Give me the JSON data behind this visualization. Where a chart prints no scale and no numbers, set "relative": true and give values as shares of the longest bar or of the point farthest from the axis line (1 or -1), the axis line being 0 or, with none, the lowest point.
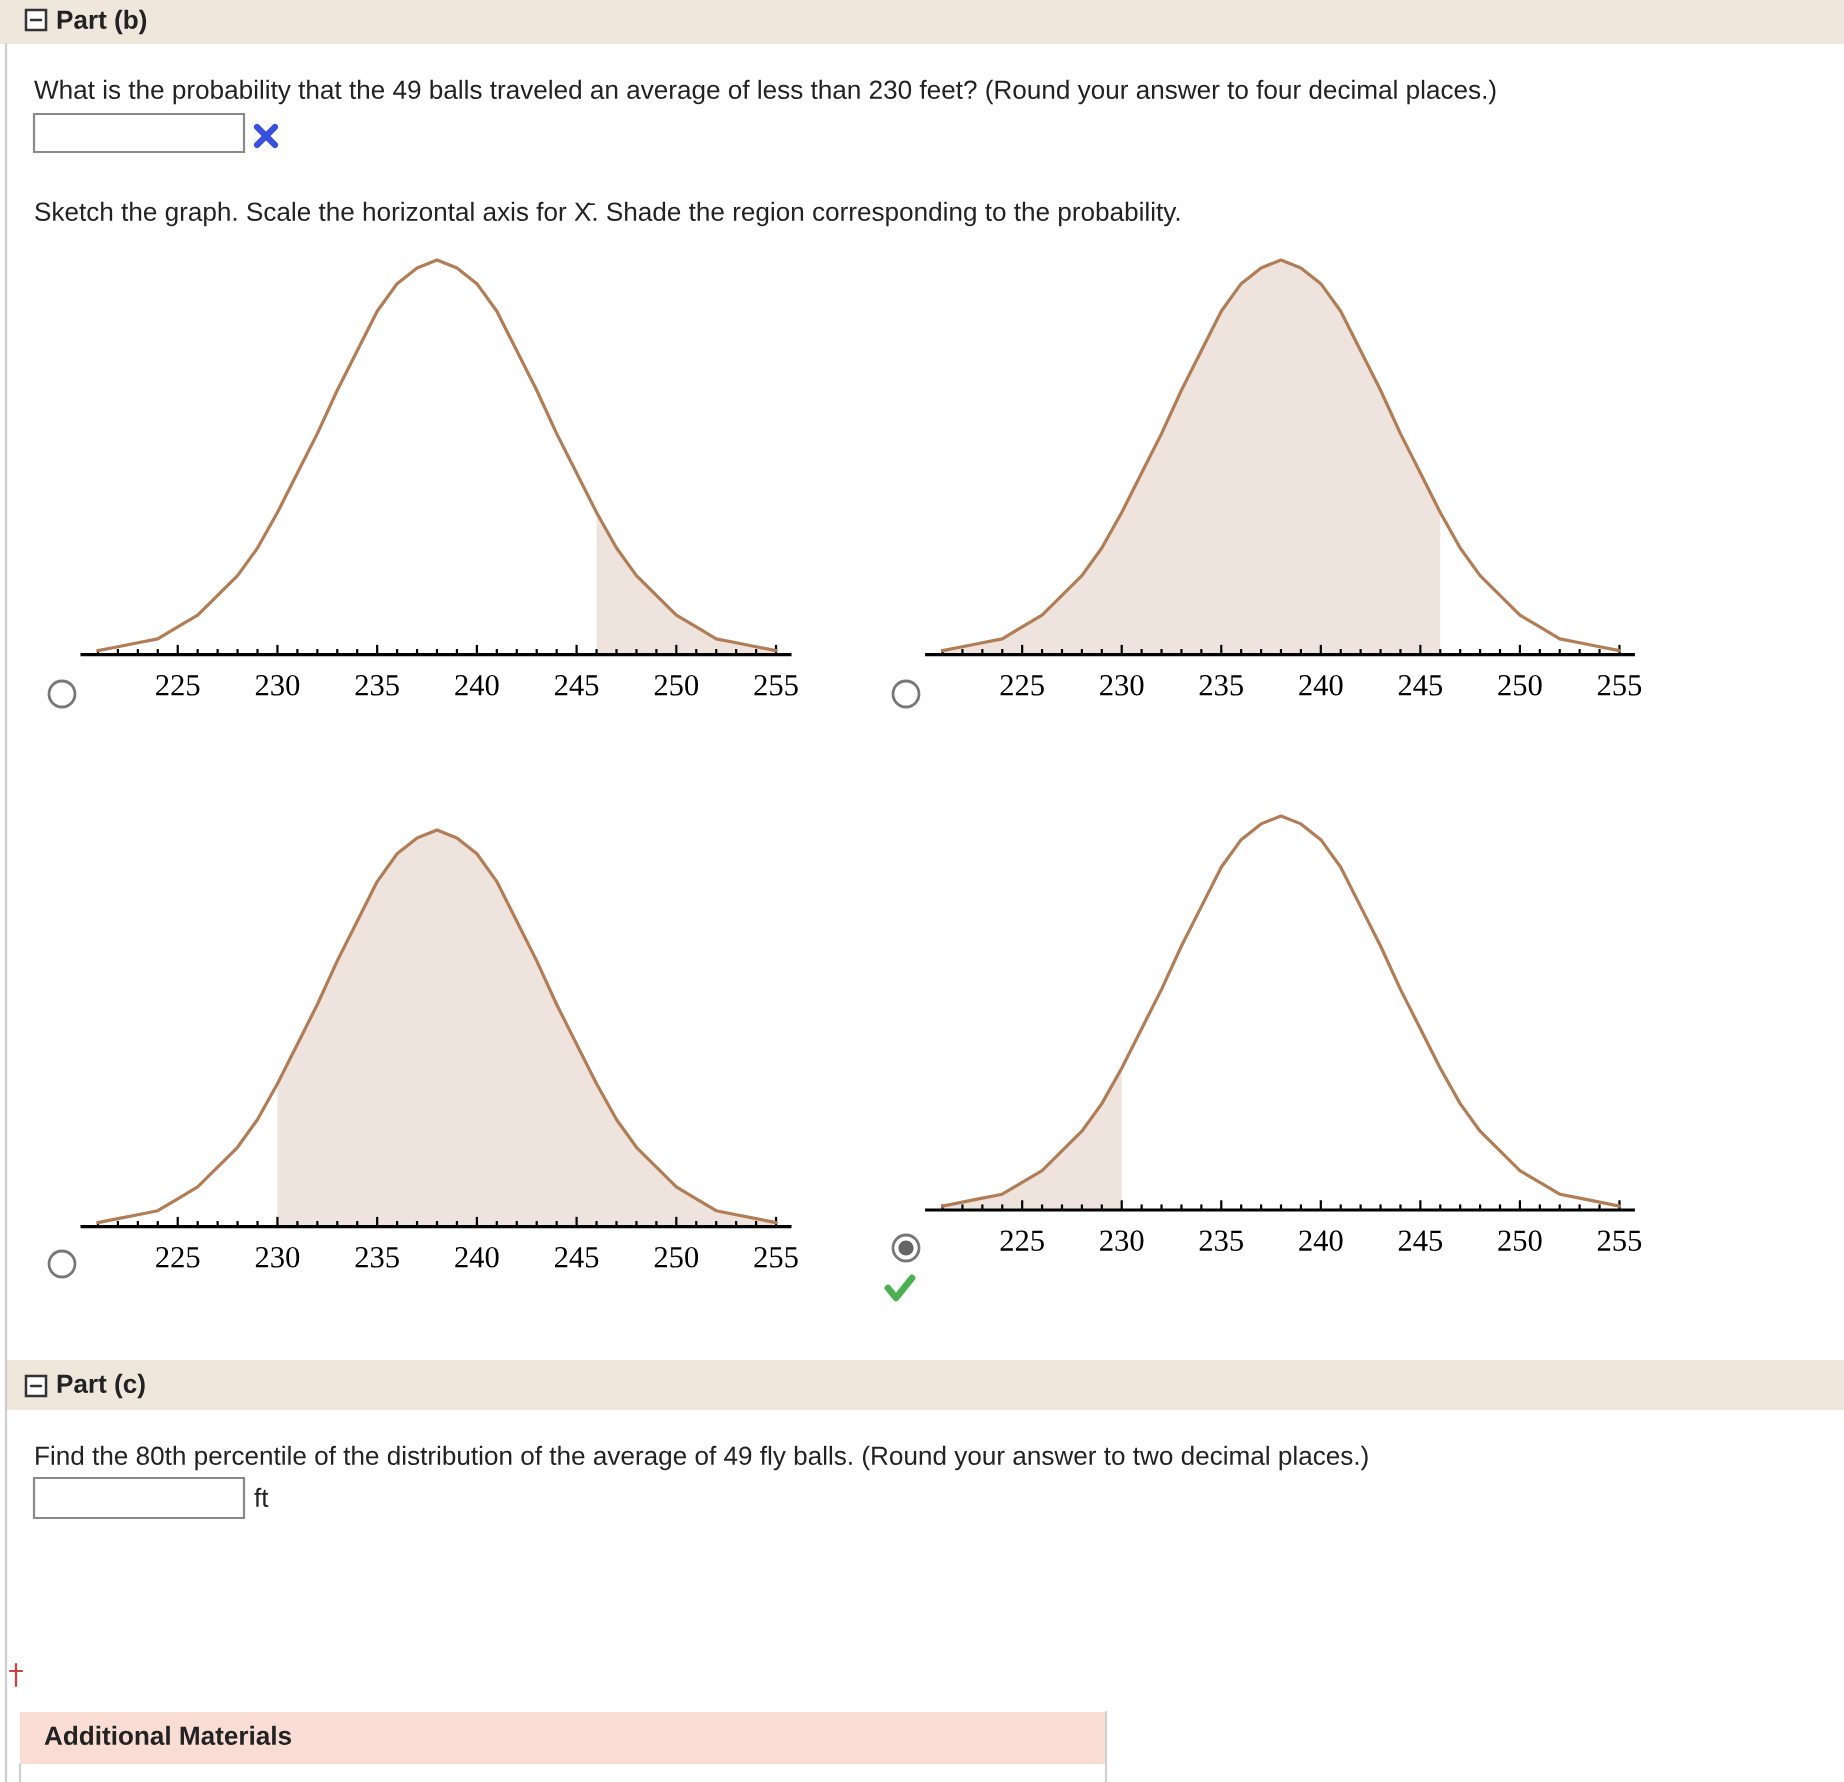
{
  "chart_data": [
    {
      "type": "line",
      "relative": true,
      "annotations": [
        "Part (b)",
        "What is the probability that the 49 balls traveled an average of less than 230 feet? (Round your answer to four decimal places.)",
        "Sketch the graph. Scale the horizontal axis for X̄. Shade the region corresponding to the probability."
      ],
      "x": [
        221,
        222,
        223,
        224,
        225,
        226,
        227,
        228,
        229,
        230,
        231,
        232,
        233,
        234,
        235,
        236,
        237,
        238,
        239,
        240,
        241,
        242,
        243,
        244,
        245,
        246,
        247,
        248,
        249,
        250,
        251,
        252,
        253,
        254,
        255
      ],
      "xlim": [
        220.2,
        255.7
      ],
      "xticks": [
        {
          "value": 221,
          "label": null
        },
        {
          "value": 222,
          "label": null
        },
        {
          "value": 223,
          "label": null
        },
        {
          "value": 224,
          "label": null
        },
        225,
        {
          "value": 226,
          "label": null
        },
        {
          "value": 227,
          "label": null
        },
        {
          "value": 228,
          "label": null
        },
        {
          "value": 229,
          "label": null
        },
        230,
        {
          "value": 231,
          "label": null
        },
        {
          "value": 232,
          "label": null
        },
        {
          "value": 233,
          "label": null
        },
        {
          "value": 234,
          "label": null
        },
        235,
        {
          "value": 236,
          "label": null
        },
        {
          "value": 237,
          "label": null
        },
        {
          "value": 238,
          "label": null
        },
        {
          "value": 239,
          "label": null
        },
        240,
        {
          "value": 241,
          "label": null
        },
        {
          "value": 242,
          "label": null
        },
        {
          "value": 243,
          "label": null
        },
        {
          "value": 244,
          "label": null
        },
        245,
        {
          "value": 246,
          "label": null
        },
        {
          "value": 247,
          "label": null
        },
        {
          "value": 248,
          "label": null
        },
        {
          "value": 249,
          "label": null
        },
        250,
        {
          "value": 251,
          "label": null
        },
        {
          "value": 252,
          "label": null
        },
        {
          "value": 253,
          "label": null
        },
        {
          "value": 254,
          "label": null
        },
        255
      ],
      "series": [
        {
          "type": "area",
          "color": "#efe4dd",
          "x": [
            246,
            247,
            248,
            249,
            250,
            251,
            252,
            253,
            254,
            255
          ],
          "values": [
            0.36,
            0.27,
            0.2,
            0.15,
            0.1,
            0.07,
            0.04,
            0.03,
            0.02,
            0.01
          ]
        },
        {
          "color": "#b17d57",
          "values": [
            0.01,
            0.02,
            0.03,
            0.04,
            0.07,
            0.1,
            0.15,
            0.2,
            0.27,
            0.36,
            0.46,
            0.56,
            0.67,
            0.77,
            0.87,
            0.94,
            0.98,
            1,
            0.98,
            0.94,
            0.87,
            0.77,
            0.67,
            0.56,
            0.46,
            0.36,
            0.27,
            0.2,
            0.15,
            0.1,
            0.07,
            0.04,
            0.03,
            0.02,
            0.01
          ]
        }
      ]
    },
    {
      "type": "line",
      "relative": true,
      "x": [
        221,
        222,
        223,
        224,
        225,
        226,
        227,
        228,
        229,
        230,
        231,
        232,
        233,
        234,
        235,
        236,
        237,
        238,
        239,
        240,
        241,
        242,
        243,
        244,
        245,
        246,
        247,
        248,
        249,
        250,
        251,
        252,
        253,
        254,
        255
      ],
      "xlim": [
        220.2,
        255.7
      ],
      "xticks": [
        {
          "value": 221,
          "label": null
        },
        {
          "value": 222,
          "label": null
        },
        {
          "value": 223,
          "label": null
        },
        {
          "value": 224,
          "label": null
        },
        225,
        {
          "value": 226,
          "label": null
        },
        {
          "value": 227,
          "label": null
        },
        {
          "value": 228,
          "label": null
        },
        {
          "value": 229,
          "label": null
        },
        230,
        {
          "value": 231,
          "label": null
        },
        {
          "value": 232,
          "label": null
        },
        {
          "value": 233,
          "label": null
        },
        {
          "value": 234,
          "label": null
        },
        235,
        {
          "value": 236,
          "label": null
        },
        {
          "value": 237,
          "label": null
        },
        {
          "value": 238,
          "label": null
        },
        {
          "value": 239,
          "label": null
        },
        240,
        {
          "value": 241,
          "label": null
        },
        {
          "value": 242,
          "label": null
        },
        {
          "value": 243,
          "label": null
        },
        {
          "value": 244,
          "label": null
        },
        245,
        {
          "value": 246,
          "label": null
        },
        {
          "value": 247,
          "label": null
        },
        {
          "value": 248,
          "label": null
        },
        {
          "value": 249,
          "label": null
        },
        250,
        {
          "value": 251,
          "label": null
        },
        {
          "value": 252,
          "label": null
        },
        {
          "value": 253,
          "label": null
        },
        {
          "value": 254,
          "label": null
        },
        255
      ],
      "series": [
        {
          "type": "area",
          "color": "#efe4dd",
          "x": [
            221,
            222,
            223,
            224,
            225,
            226,
            227,
            228,
            229,
            230,
            231,
            232,
            233,
            234,
            235,
            236,
            237,
            238,
            239,
            240,
            241,
            242,
            243,
            244,
            245,
            246
          ],
          "values": [
            0.01,
            0.02,
            0.03,
            0.04,
            0.07,
            0.1,
            0.15,
            0.2,
            0.27,
            0.36,
            0.46,
            0.56,
            0.67,
            0.77,
            0.87,
            0.94,
            0.98,
            1,
            0.98,
            0.94,
            0.87,
            0.77,
            0.67,
            0.56,
            0.46,
            0.36
          ]
        },
        {
          "color": "#b17d57",
          "values": [
            0.01,
            0.02,
            0.03,
            0.04,
            0.07,
            0.1,
            0.15,
            0.2,
            0.27,
            0.36,
            0.46,
            0.56,
            0.67,
            0.77,
            0.87,
            0.94,
            0.98,
            1,
            0.98,
            0.94,
            0.87,
            0.77,
            0.67,
            0.56,
            0.46,
            0.36,
            0.27,
            0.2,
            0.15,
            0.1,
            0.07,
            0.04,
            0.03,
            0.02,
            0.01
          ]
        }
      ]
    },
    {
      "type": "line",
      "relative": true,
      "x": [
        221,
        222,
        223,
        224,
        225,
        226,
        227,
        228,
        229,
        230,
        231,
        232,
        233,
        234,
        235,
        236,
        237,
        238,
        239,
        240,
        241,
        242,
        243,
        244,
        245,
        246,
        247,
        248,
        249,
        250,
        251,
        252,
        253,
        254,
        255
      ],
      "xlim": [
        220.2,
        255.7
      ],
      "xticks": [
        {
          "value": 221,
          "label": null
        },
        {
          "value": 222,
          "label": null
        },
        {
          "value": 223,
          "label": null
        },
        {
          "value": 224,
          "label": null
        },
        225,
        {
          "value": 226,
          "label": null
        },
        {
          "value": 227,
          "label": null
        },
        {
          "value": 228,
          "label": null
        },
        {
          "value": 229,
          "label": null
        },
        230,
        {
          "value": 231,
          "label": null
        },
        {
          "value": 232,
          "label": null
        },
        {
          "value": 233,
          "label": null
        },
        {
          "value": 234,
          "label": null
        },
        235,
        {
          "value": 236,
          "label": null
        },
        {
          "value": 237,
          "label": null
        },
        {
          "value": 238,
          "label": null
        },
        {
          "value": 239,
          "label": null
        },
        240,
        {
          "value": 241,
          "label": null
        },
        {
          "value": 242,
          "label": null
        },
        {
          "value": 243,
          "label": null
        },
        {
          "value": 244,
          "label": null
        },
        245,
        {
          "value": 246,
          "label": null
        },
        {
          "value": 247,
          "label": null
        },
        {
          "value": 248,
          "label": null
        },
        {
          "value": 249,
          "label": null
        },
        250,
        {
          "value": 251,
          "label": null
        },
        {
          "value": 252,
          "label": null
        },
        {
          "value": 253,
          "label": null
        },
        {
          "value": 254,
          "label": null
        },
        255
      ],
      "series": [
        {
          "type": "area",
          "color": "#efe4dd",
          "x": [
            230,
            231,
            232,
            233,
            234,
            235,
            236,
            237,
            238,
            239,
            240,
            241,
            242,
            243,
            244,
            245,
            246,
            247,
            248,
            249,
            250,
            251,
            252,
            253,
            254,
            255
          ],
          "values": [
            0.36,
            0.46,
            0.56,
            0.67,
            0.77,
            0.87,
            0.94,
            0.98,
            1,
            0.98,
            0.94,
            0.87,
            0.77,
            0.67,
            0.56,
            0.46,
            0.36,
            0.27,
            0.2,
            0.15,
            0.1,
            0.07,
            0.04,
            0.03,
            0.02,
            0.01
          ]
        },
        {
          "color": "#b17d57",
          "values": [
            0.01,
            0.02,
            0.03,
            0.04,
            0.07,
            0.1,
            0.15,
            0.2,
            0.27,
            0.36,
            0.46,
            0.56,
            0.67,
            0.77,
            0.87,
            0.94,
            0.98,
            1,
            0.98,
            0.94,
            0.87,
            0.77,
            0.67,
            0.56,
            0.46,
            0.36,
            0.27,
            0.2,
            0.15,
            0.1,
            0.07,
            0.04,
            0.03,
            0.02,
            0.01
          ]
        }
      ]
    },
    {
      "type": "line",
      "relative": true,
      "annotations": [
        "Part (c)",
        "Find the 80th percentile of the distribution of the average of 49 fly balls. (Round your answer to two decimal places.)",
        "ft",
        "Additional Materials"
      ],
      "x": [
        221,
        222,
        223,
        224,
        225,
        226,
        227,
        228,
        229,
        230,
        231,
        232,
        233,
        234,
        235,
        236,
        237,
        238,
        239,
        240,
        241,
        242,
        243,
        244,
        245,
        246,
        247,
        248,
        249,
        250,
        251,
        252,
        253,
        254,
        255
      ],
      "xlim": [
        220.2,
        255.7
      ],
      "xticks": [
        {
          "value": 221,
          "label": null
        },
        {
          "value": 222,
          "label": null
        },
        {
          "value": 223,
          "label": null
        },
        {
          "value": 224,
          "label": null
        },
        225,
        {
          "value": 226,
          "label": null
        },
        {
          "value": 227,
          "label": null
        },
        {
          "value": 228,
          "label": null
        },
        {
          "value": 229,
          "label": null
        },
        230,
        {
          "value": 231,
          "label": null
        },
        {
          "value": 232,
          "label": null
        },
        {
          "value": 233,
          "label": null
        },
        {
          "value": 234,
          "label": null
        },
        235,
        {
          "value": 236,
          "label": null
        },
        {
          "value": 237,
          "label": null
        },
        {
          "value": 238,
          "label": null
        },
        {
          "value": 239,
          "label": null
        },
        240,
        {
          "value": 241,
          "label": null
        },
        {
          "value": 242,
          "label": null
        },
        {
          "value": 243,
          "label": null
        },
        {
          "value": 244,
          "label": null
        },
        245,
        {
          "value": 246,
          "label": null
        },
        {
          "value": 247,
          "label": null
        },
        {
          "value": 248,
          "label": null
        },
        {
          "value": 249,
          "label": null
        },
        250,
        {
          "value": 251,
          "label": null
        },
        {
          "value": 252,
          "label": null
        },
        {
          "value": 253,
          "label": null
        },
        {
          "value": 254,
          "label": null
        },
        255
      ],
      "series": [
        {
          "type": "area",
          "color": "#efe4dd",
          "x": [
            221,
            222,
            223,
            224,
            225,
            226,
            227,
            228,
            229,
            230
          ],
          "values": [
            0.01,
            0.02,
            0.03,
            0.04,
            0.07,
            0.1,
            0.15,
            0.2,
            0.27,
            0.36
          ]
        },
        {
          "color": "#b17d57",
          "values": [
            0.01,
            0.02,
            0.03,
            0.04,
            0.07,
            0.1,
            0.15,
            0.2,
            0.27,
            0.36,
            0.46,
            0.56,
            0.67,
            0.77,
            0.87,
            0.94,
            0.98,
            1,
            0.98,
            0.94,
            0.87,
            0.77,
            0.67,
            0.56,
            0.46,
            0.36,
            0.27,
            0.2,
            0.15,
            0.1,
            0.07,
            0.04,
            0.03,
            0.02,
            0.01
          ]
        }
      ]
    }
  ]
}
